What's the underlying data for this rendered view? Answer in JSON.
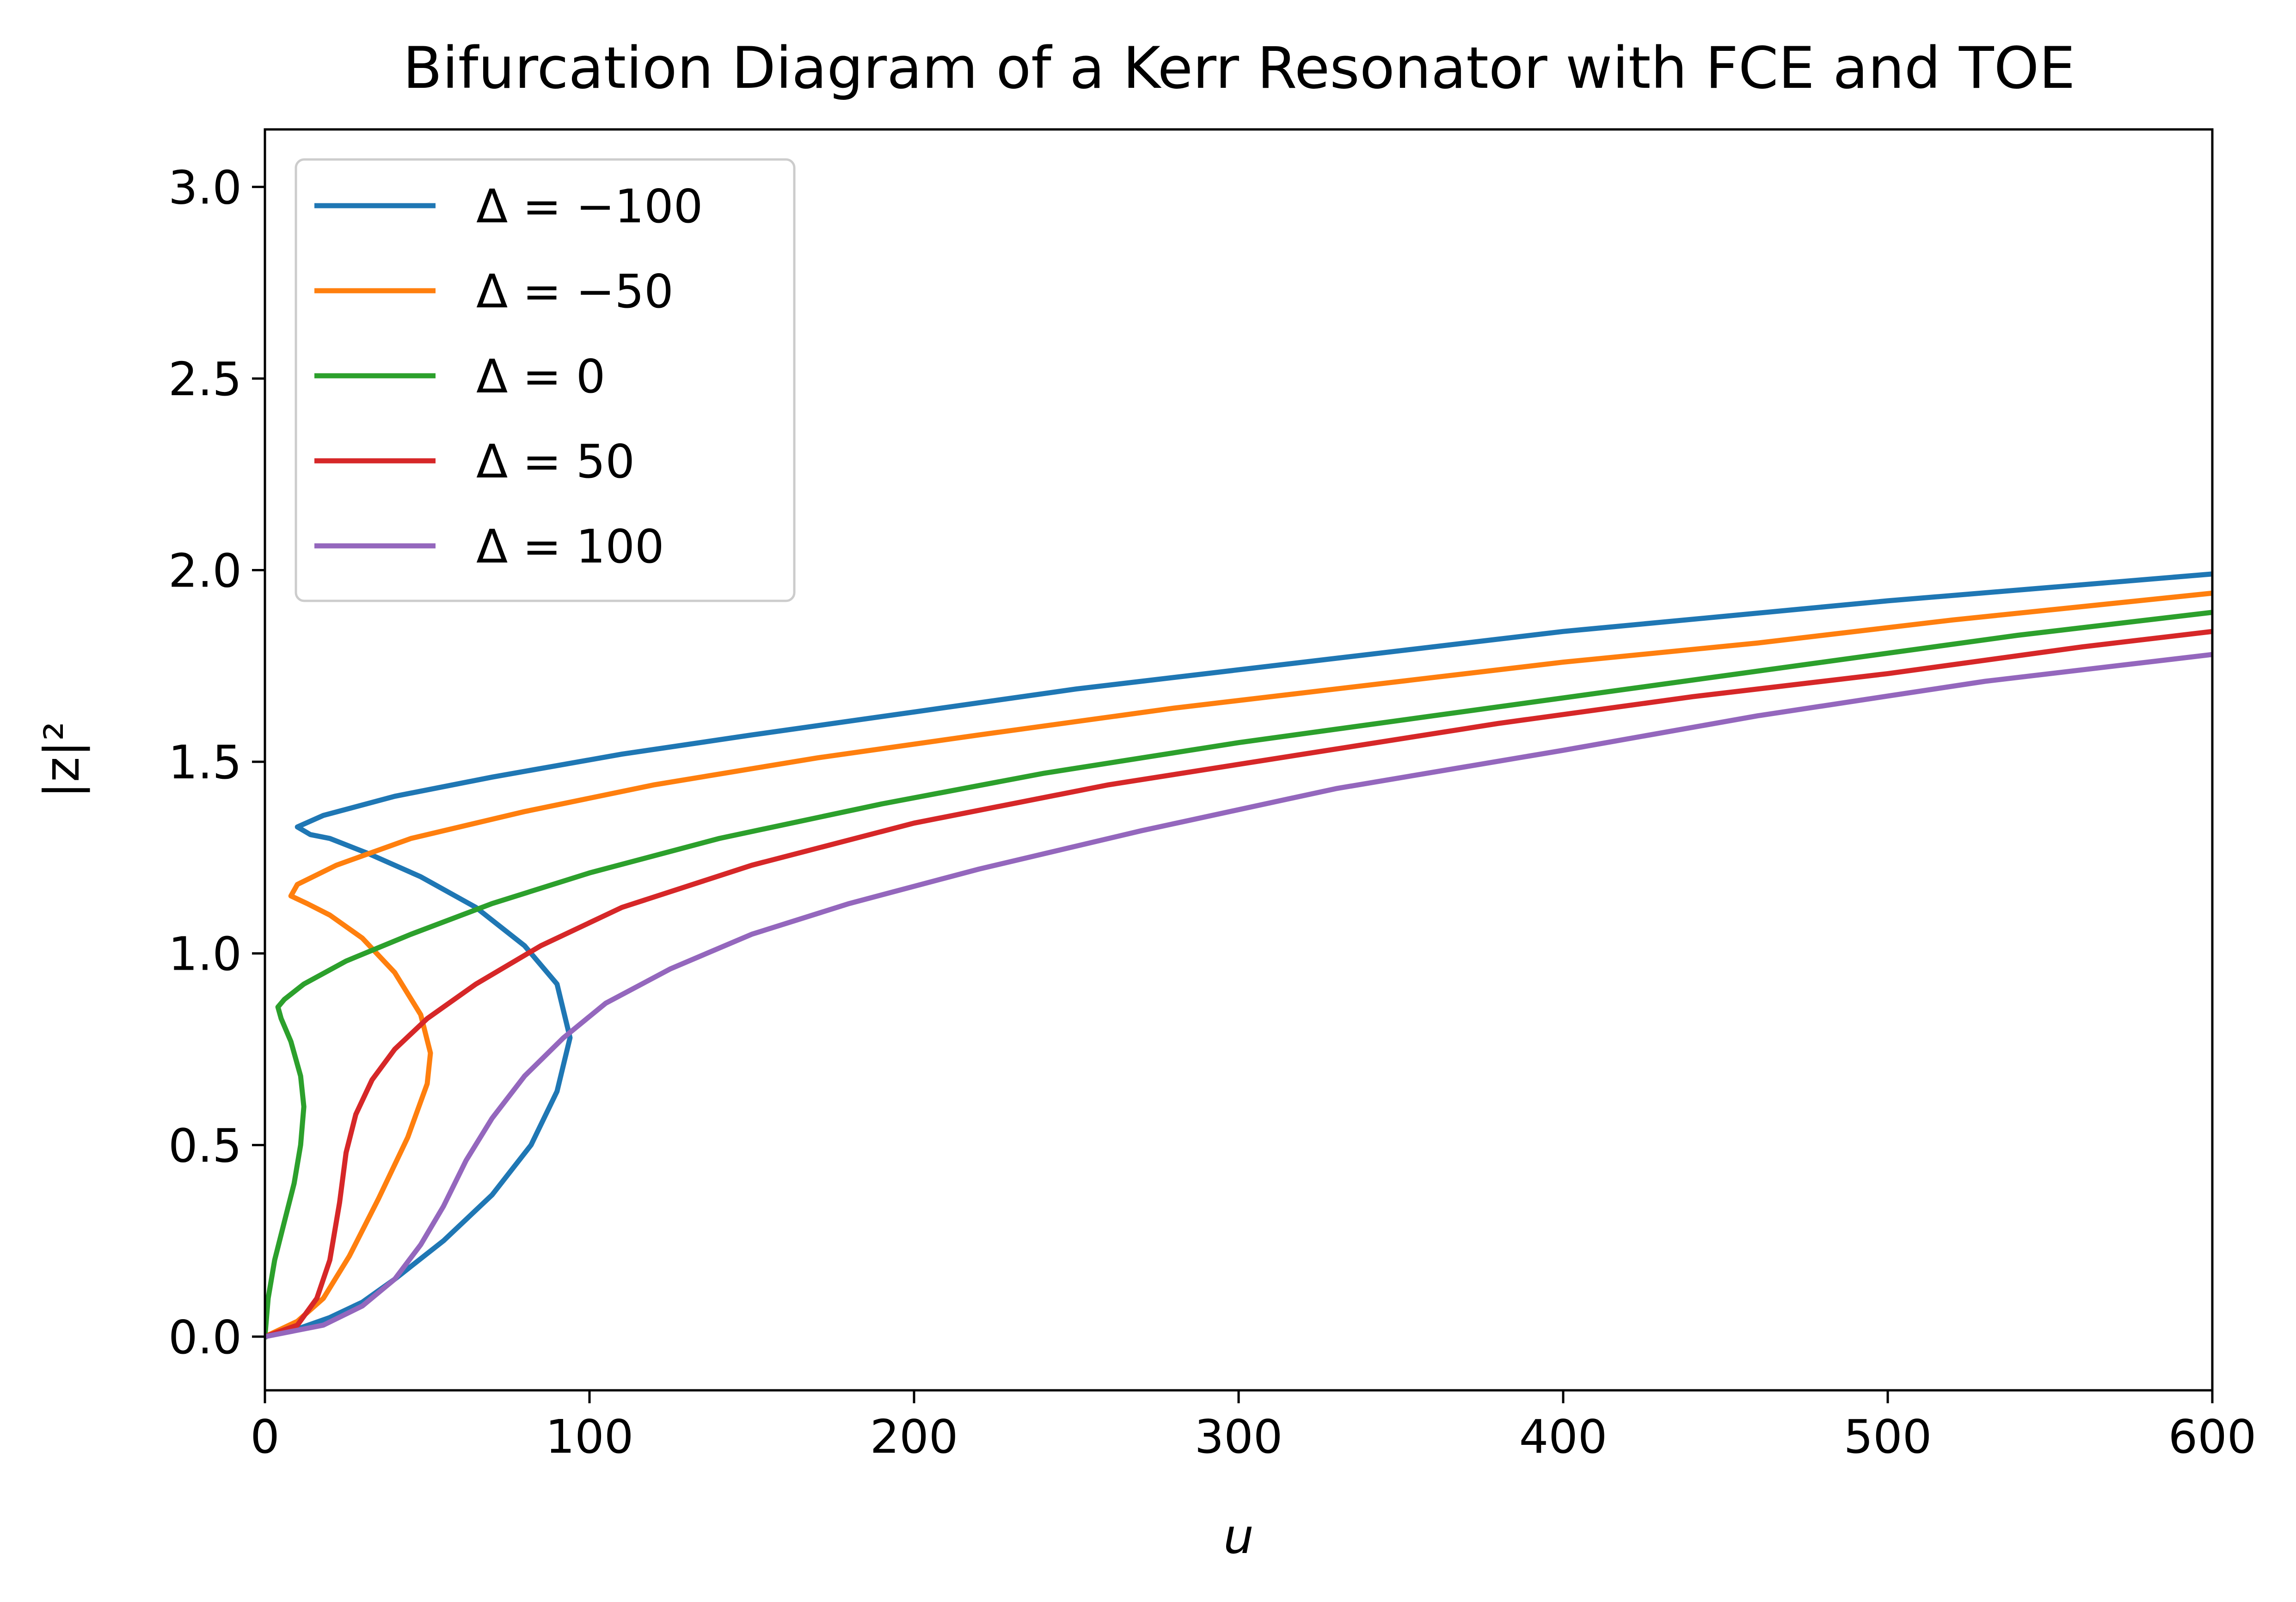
{
  "chart_data": {
    "type": "line",
    "title": "Bifurcation Diagram of a Kerr Resonator with FCE and TOE",
    "xlabel": "u",
    "ylabel": "|z|²",
    "xlim": [
      0,
      600
    ],
    "ylim": [
      -0.14,
      3.15
    ],
    "x_ticks": [
      0,
      100,
      200,
      300,
      400,
      500,
      600
    ],
    "x_tick_labels": [
      "0",
      "100",
      "200",
      "300",
      "400",
      "500",
      "600"
    ],
    "y_ticks": [
      0.0,
      0.5,
      1.0,
      1.5,
      2.0,
      2.5,
      3.0
    ],
    "y_tick_labels": [
      "0.0",
      "0.5",
      "1.0",
      "1.5",
      "2.0",
      "2.5",
      "3.0"
    ],
    "grid": false,
    "legend_position": "top-left",
    "series": [
      {
        "name": "Δ = −100",
        "color": "#1f77b4",
        "points": [
          [
            0,
            0
          ],
          [
            10,
            0.02
          ],
          [
            20,
            0.05
          ],
          [
            30,
            0.09
          ],
          [
            40,
            0.15
          ],
          [
            55,
            0.25
          ],
          [
            70,
            0.37
          ],
          [
            82,
            0.5
          ],
          [
            90,
            0.64
          ],
          [
            94,
            0.78
          ],
          [
            90,
            0.92
          ],
          [
            80,
            1.02
          ],
          [
            65,
            1.12
          ],
          [
            48,
            1.2
          ],
          [
            32,
            1.26
          ],
          [
            20,
            1.3
          ],
          [
            14,
            1.31
          ],
          [
            10,
            1.33
          ],
          [
            18,
            1.36
          ],
          [
            40,
            1.41
          ],
          [
            70,
            1.46
          ],
          [
            110,
            1.52
          ],
          [
            150,
            1.57
          ],
          [
            200,
            1.63
          ],
          [
            250,
            1.69
          ],
          [
            300,
            1.74
          ],
          [
            350,
            1.79
          ],
          [
            400,
            1.84
          ],
          [
            450,
            1.88
          ],
          [
            500,
            1.92
          ],
          [
            550,
            1.955
          ],
          [
            600,
            1.99
          ]
        ]
      },
      {
        "name": "Δ = −50",
        "color": "#ff7f0e",
        "points": [
          [
            0,
            0
          ],
          [
            10,
            0.04
          ],
          [
            18,
            0.1
          ],
          [
            26,
            0.21
          ],
          [
            35,
            0.36
          ],
          [
            44,
            0.52
          ],
          [
            50,
            0.66
          ],
          [
            51,
            0.74
          ],
          [
            48,
            0.84
          ],
          [
            40,
            0.95
          ],
          [
            30,
            1.04
          ],
          [
            20,
            1.1
          ],
          [
            13,
            1.13
          ],
          [
            8,
            1.15
          ],
          [
            10,
            1.18
          ],
          [
            22,
            1.23
          ],
          [
            45,
            1.3
          ],
          [
            80,
            1.37
          ],
          [
            120,
            1.44
          ],
          [
            170,
            1.51
          ],
          [
            220,
            1.57
          ],
          [
            280,
            1.64
          ],
          [
            340,
            1.7
          ],
          [
            400,
            1.76
          ],
          [
            460,
            1.81
          ],
          [
            520,
            1.87
          ],
          [
            600,
            1.94
          ]
        ]
      },
      {
        "name": "Δ = 0",
        "color": "#2ca02c",
        "points": [
          [
            0,
            0
          ],
          [
            1,
            0.1
          ],
          [
            3,
            0.2
          ],
          [
            6,
            0.3
          ],
          [
            9,
            0.4
          ],
          [
            11,
            0.5
          ],
          [
            12,
            0.6
          ],
          [
            11,
            0.68
          ],
          [
            8,
            0.77
          ],
          [
            5,
            0.83
          ],
          [
            4,
            0.86
          ],
          [
            6,
            0.88
          ],
          [
            12,
            0.92
          ],
          [
            25,
            0.98
          ],
          [
            45,
            1.05
          ],
          [
            70,
            1.13
          ],
          [
            100,
            1.21
          ],
          [
            140,
            1.3
          ],
          [
            190,
            1.39
          ],
          [
            240,
            1.47
          ],
          [
            300,
            1.55
          ],
          [
            360,
            1.62
          ],
          [
            420,
            1.69
          ],
          [
            480,
            1.76
          ],
          [
            540,
            1.83
          ],
          [
            600,
            1.89
          ]
        ]
      },
      {
        "name": "Δ = 50",
        "color": "#d62728",
        "points": [
          [
            0,
            0
          ],
          [
            10,
            0.03
          ],
          [
            16,
            0.1
          ],
          [
            20,
            0.2
          ],
          [
            23,
            0.35
          ],
          [
            25,
            0.48
          ],
          [
            28,
            0.58
          ],
          [
            33,
            0.67
          ],
          [
            40,
            0.75
          ],
          [
            50,
            0.83
          ],
          [
            65,
            0.92
          ],
          [
            85,
            1.02
          ],
          [
            110,
            1.12
          ],
          [
            150,
            1.23
          ],
          [
            200,
            1.34
          ],
          [
            260,
            1.44
          ],
          [
            320,
            1.52
          ],
          [
            380,
            1.6
          ],
          [
            440,
            1.67
          ],
          [
            500,
            1.73
          ],
          [
            560,
            1.8
          ],
          [
            600,
            1.84
          ]
        ]
      },
      {
        "name": "Δ = 100",
        "color": "#9467bd",
        "points": [
          [
            0,
            0
          ],
          [
            18,
            0.03
          ],
          [
            30,
            0.08
          ],
          [
            40,
            0.15
          ],
          [
            48,
            0.24
          ],
          [
            55,
            0.34
          ],
          [
            62,
            0.46
          ],
          [
            70,
            0.57
          ],
          [
            80,
            0.68
          ],
          [
            92,
            0.78
          ],
          [
            105,
            0.87
          ],
          [
            125,
            0.96
          ],
          [
            150,
            1.05
          ],
          [
            180,
            1.13
          ],
          [
            220,
            1.22
          ],
          [
            270,
            1.32
          ],
          [
            330,
            1.43
          ],
          [
            400,
            1.53
          ],
          [
            460,
            1.62
          ],
          [
            530,
            1.71
          ],
          [
            600,
            1.78
          ]
        ]
      }
    ]
  }
}
